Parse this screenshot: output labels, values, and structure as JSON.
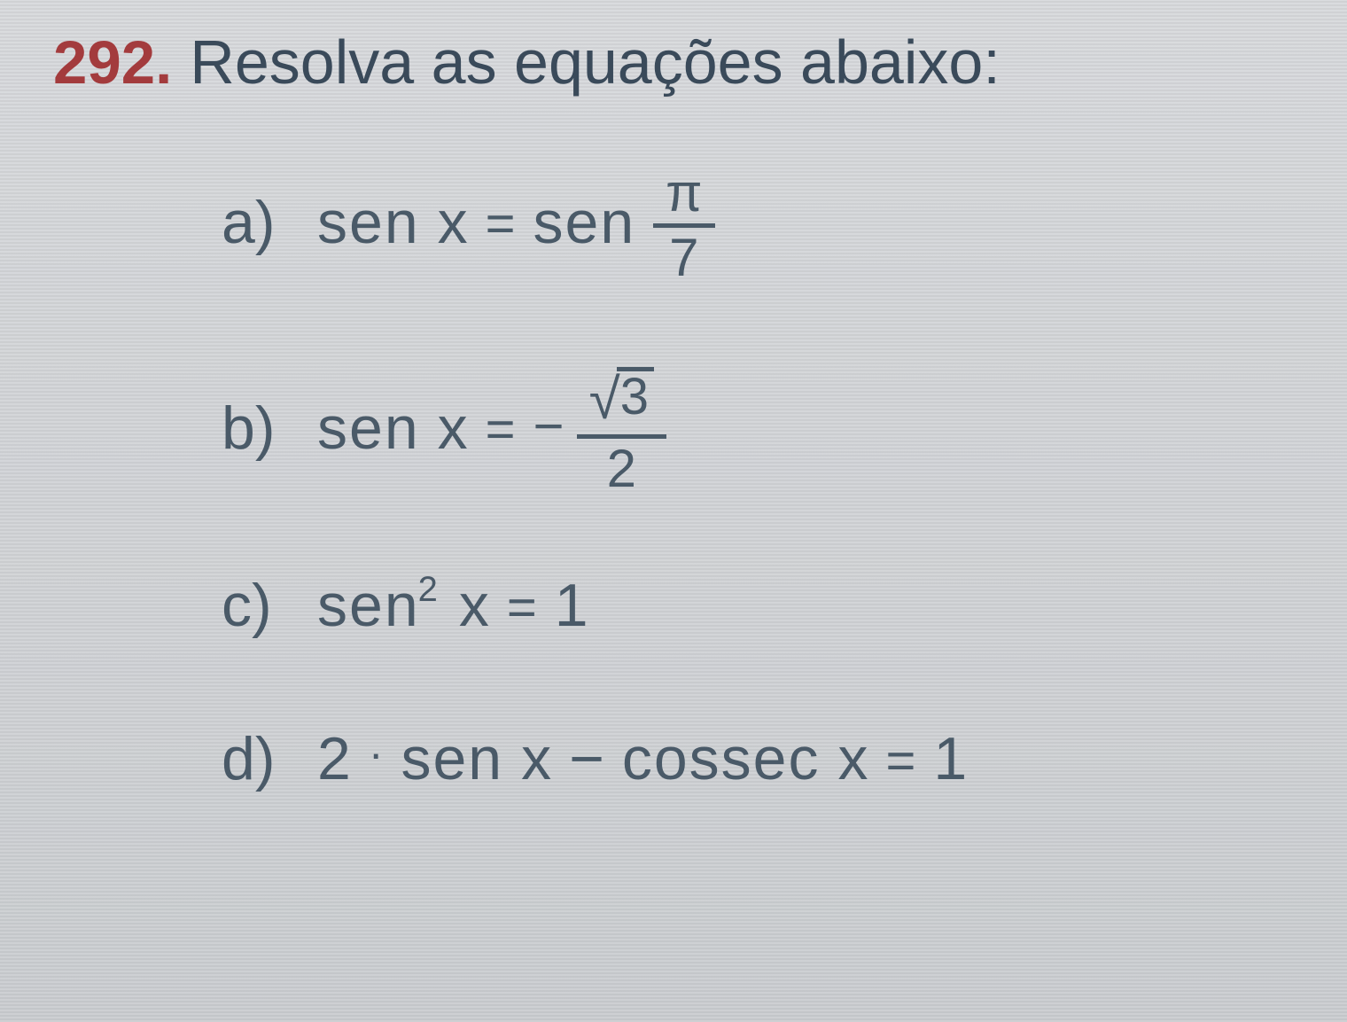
{
  "colors": {
    "exercise_number": "#a33b3d",
    "text": "#3a4a5a",
    "math": "#4a5a68",
    "background_top": "#d8dadd",
    "background_bottom": "#cbced1"
  },
  "typography": {
    "heading_fontsize_pt": 52,
    "item_fontsize_pt": 51,
    "font_family": "Arial"
  },
  "exercise": {
    "number": "292.",
    "title": "Resolva as equações abaixo:",
    "items": [
      {
        "label": "a)",
        "lhs_func": "sen",
        "lhs_var": "x",
        "op": "=",
        "rhs_func": "sen",
        "rhs_frac": {
          "num": "π",
          "den": "7"
        }
      },
      {
        "label": "b)",
        "lhs_func": "sen",
        "lhs_var": "x",
        "op": "=",
        "rhs_sign": "−",
        "rhs_frac": {
          "num_sqrt": "3",
          "den": "2"
        }
      },
      {
        "label": "c)",
        "lhs_func": "sen",
        "lhs_exp": "2",
        "lhs_var": "x",
        "op": "=",
        "rhs": "1"
      },
      {
        "label": "d)",
        "lhs_coeff": "2",
        "dot": "·",
        "lhs_func": "sen",
        "lhs_var": "x",
        "minus": "−",
        "rhs_func": "cossec",
        "rhs_var": "x",
        "op": "=",
        "rhs": "1"
      }
    ]
  }
}
